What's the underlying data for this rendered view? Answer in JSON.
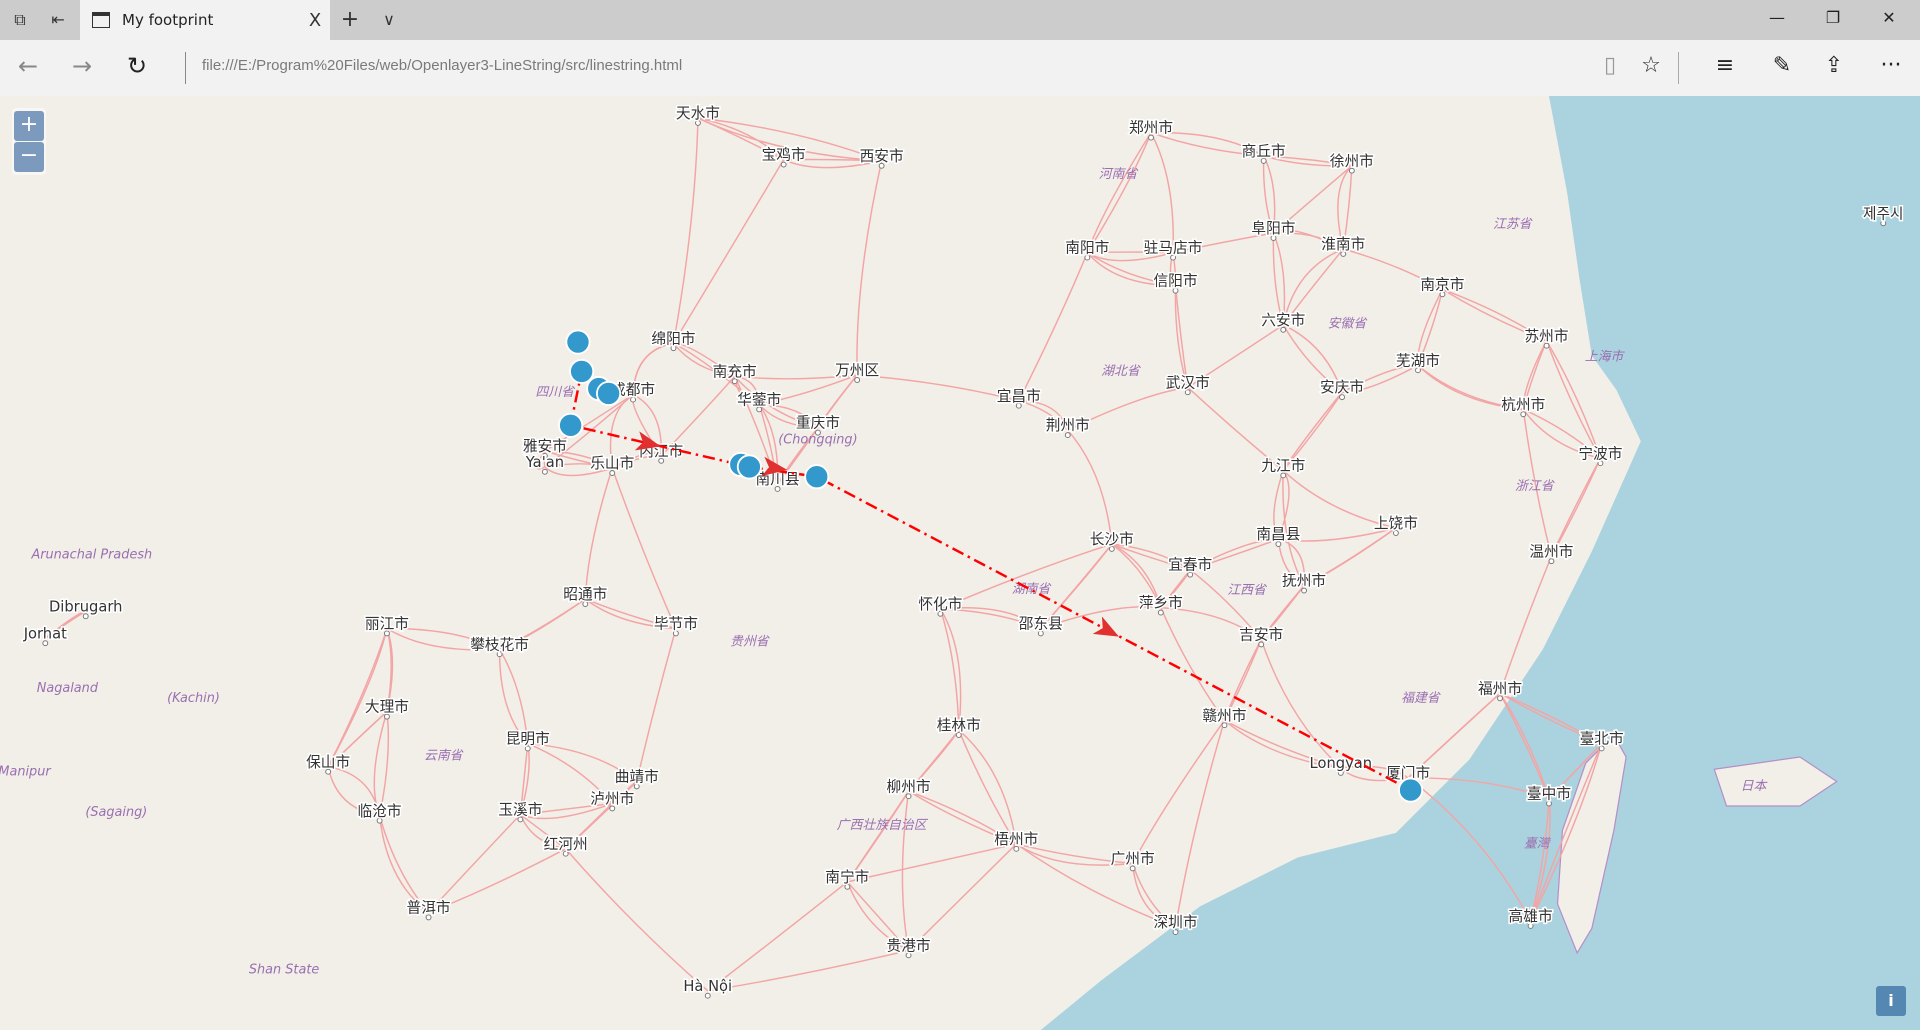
{
  "browser": {
    "tab_title": "My footprint",
    "url": "file:///E:/Program%20Files/web/Openlayer3-LineString/src/linestring.html",
    "icons": [
      "tab-list-icon",
      "set-aside-icon",
      "page-icon",
      "close-icon",
      "new-tab-icon",
      "chevron-down-icon",
      "back-icon",
      "forward-icon",
      "refresh-icon",
      "reading-view-icon",
      "star-icon",
      "hub-icon",
      "pen-icon",
      "share-icon",
      "more-icon"
    ],
    "glyphs": {
      "new_tab": "+",
      "tabs_menu": "∨",
      "close": "X",
      "back": "←",
      "forward": "→",
      "refresh": "↻",
      "reading": "▯",
      "star": "☆",
      "hub": "≡",
      "pen": "✎",
      "share": "⇪",
      "more": "···",
      "min": "—",
      "restore": "❐",
      "winclose": "✕"
    }
  },
  "map": {
    "zoom_in": "+",
    "zoom_out": "−",
    "attribution": "i",
    "colors": {
      "land": "#f2efe9",
      "sea": "#aad3df",
      "road": "#f3a5a5",
      "border": "#b48fc8",
      "marker": "#3399cc",
      "marker_stroke": "#ffffff",
      "route": "#ff0000",
      "arrow": "#e03030"
    },
    "cities": [
      "成都市",
      "重庆市",
      "武汉市",
      "长沙市",
      "南昌县",
      "杭州市",
      "苏州市",
      "南京市",
      "郑州市",
      "西安市",
      "六安市",
      "福州市",
      "厦门市",
      "广州市",
      "深圳市",
      "南宁市",
      "昆明市",
      "桂林市",
      "昭通市",
      "毕节市",
      "宜昌市",
      "荆州市",
      "九江市",
      "赣州市",
      "吉安市",
      "萍乡市",
      "南阳市",
      "信阳市",
      "宝鸡市",
      "天水市",
      "绵阳市",
      "南充市",
      "雅安市",
      "乐山市",
      "内江市",
      "上饶市",
      "温州市",
      "宁波市",
      "安庆市",
      "芜湖市",
      "商丘市",
      "徐州市",
      "丽江市",
      "临沧市",
      "普洱市",
      "玉溪市",
      "大理市",
      "保山市",
      "红河州",
      "臺北市",
      "臺中市",
      "高雄市",
      "Longyan",
      "Hà Nội",
      "Dibrugarh",
      "Jorhat",
      "Ya'an",
      "제주시",
      "驻马店市",
      "阜阳市",
      "淮南市",
      "抚州市",
      "宜春市",
      "怀化市",
      "邵东县",
      "贵港市",
      "梧州市",
      "柳州市",
      "曲靖市",
      "攀枝花市",
      "万州区",
      "南川县",
      "华蓥市",
      "泸州市"
    ],
    "regions": [
      "四川省",
      "湖北省",
      "河南省",
      "安徽省",
      "江苏省",
      "浙江省",
      "江西省",
      "湖南省",
      "福建省",
      "广西壮族自治区",
      "贵州省",
      "云南省",
      "(Chongqing)",
      "臺灣",
      "日本",
      "上海市",
      "Arunachal Pradesh",
      "Nagaland",
      "Manipur",
      "(Kachin)",
      "(Sagaing)",
      "Shan State"
    ]
  }
}
